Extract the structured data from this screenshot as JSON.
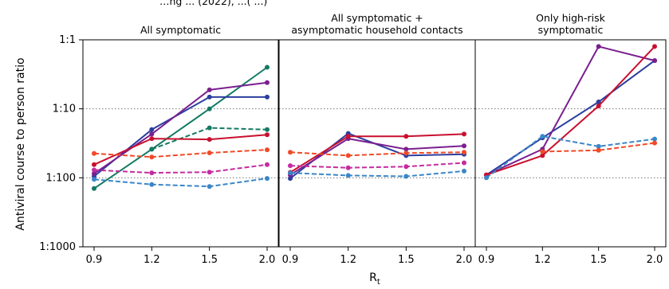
{
  "header": {
    "clipped_title": "…ng ... (2022), ...( ...)"
  },
  "chart_data": {
    "type": "line",
    "ylabel": "Antiviral course to person ratio",
    "xlabel": "R",
    "xlabel_subscript": "t",
    "y_scale": "log",
    "ylim": [
      0.001,
      1
    ],
    "y_ticks": [
      0.001,
      0.01,
      0.1,
      1
    ],
    "y_tick_labels": [
      "1:1000",
      "1:100",
      "1:10",
      "1:1"
    ],
    "x_categories": [
      "0.9",
      "1.2",
      "1.5",
      "2.0"
    ],
    "grid": "horizontal dotted",
    "panels": [
      {
        "title_lines": [
          "All symptomatic"
        ],
        "series": [
          {
            "color": "#137a63",
            "dash": false,
            "values": [
              0.007,
              0.026,
              0.1,
              0.4
            ]
          },
          {
            "color": "#137a63",
            "dash": true,
            "values": [
              null,
              0.026,
              0.053,
              0.05
            ]
          },
          {
            "color": "#2c3e9e",
            "dash": false,
            "values": [
              0.0105,
              0.05,
              0.148,
              0.148
            ]
          },
          {
            "color": "#7a1f8f",
            "dash": false,
            "values": [
              0.0115,
              0.043,
              0.188,
              0.24
            ]
          },
          {
            "color": "#c8102e",
            "dash": false,
            "values": [
              0.0155,
              0.037,
              0.036,
              0.042
            ]
          },
          {
            "color": "#3a86c8",
            "dash": true,
            "values": [
              0.0095,
              0.008,
              0.0075,
              0.0098
            ]
          },
          {
            "color": "#c42ca0",
            "dash": true,
            "values": [
              0.013,
              0.0118,
              0.0121,
              0.0155
            ]
          },
          {
            "color": "#f04a28",
            "dash": true,
            "values": [
              0.0225,
              0.02,
              0.023,
              0.0255
            ]
          }
        ]
      },
      {
        "title_lines": [
          "All symptomatic +",
          "asymptomatic household contacts"
        ],
        "series": [
          {
            "color": "#2c3e9e",
            "dash": false,
            "values": [
              0.0098,
              0.044,
              0.021,
              0.022
            ]
          },
          {
            "color": "#7a1f8f",
            "dash": false,
            "values": [
              0.011,
              0.037,
              0.026,
              0.029
            ]
          },
          {
            "color": "#c8102e",
            "dash": false,
            "values": [
              0.012,
              0.04,
              0.04,
              0.043
            ]
          },
          {
            "color": "#3a86c8",
            "dash": true,
            "values": [
              0.0118,
              0.0108,
              0.0105,
              0.0125
            ]
          },
          {
            "color": "#c42ca0",
            "dash": true,
            "values": [
              0.015,
              0.014,
              0.0145,
              0.0165
            ]
          },
          {
            "color": "#f04a28",
            "dash": true,
            "values": [
              0.0235,
              0.021,
              0.0228,
              0.0235
            ]
          }
        ]
      },
      {
        "title_lines": [
          "Only high-risk",
          "symptomatic"
        ],
        "series": [
          {
            "color": "#2c3e9e",
            "dash": false,
            "values": [
              0.011,
              0.038,
              0.126,
              0.5
            ]
          },
          {
            "color": "#7a1f8f",
            "dash": false,
            "values": [
              0.011,
              0.026,
              0.8,
              0.5
            ]
          },
          {
            "color": "#c8102e",
            "dash": false,
            "values": [
              0.011,
              0.021,
              0.11,
              0.8
            ]
          },
          {
            "color": "#3a86c8",
            "dash": true,
            "values": [
              0.01,
              0.04,
              0.0285,
              0.0365
            ]
          },
          {
            "color": "#f04a28",
            "dash": true,
            "values": [
              null,
              0.024,
              0.025,
              0.032
            ]
          }
        ]
      }
    ]
  }
}
